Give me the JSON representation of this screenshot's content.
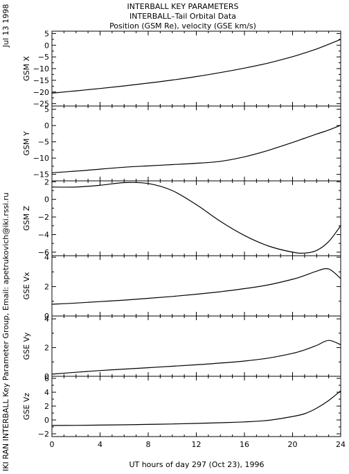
{
  "header": {
    "title1": "INTERBALL KEY PARAMETERS",
    "title2": "INTERBALL–Tail Orbital Data",
    "title3": "Position (GSM Re), velocity (GSE km/s)"
  },
  "side": {
    "date": "Jul 13 1998",
    "credit": "IKI RAN INTERBALL Key Parameter Group, Email: apetrukovich@iki.rssi.ru"
  },
  "chart_data": {
    "type": "line",
    "xlabel": "UT hours of day 297 (Oct 23), 1996",
    "xlim": [
      0,
      24
    ],
    "x_ticks": [
      0,
      4,
      8,
      12,
      16,
      20,
      24
    ],
    "x": [
      0,
      2,
      4,
      6,
      8,
      10,
      12,
      14,
      16,
      18,
      20,
      21,
      22,
      23,
      24
    ],
    "panels": [
      {
        "name": "GSM X",
        "ylim": [
          -26,
          6
        ],
        "y_ticks": [
          5,
          0,
          -5,
          -10,
          -15,
          -20,
          -25
        ],
        "values": [
          -20.5,
          -19.5,
          -18.5,
          -17.4,
          -16.2,
          -14.9,
          -13.4,
          -11.7,
          -9.8,
          -7.6,
          -4.9,
          -3.3,
          -1.6,
          0.4,
          2.5
        ]
      },
      {
        "name": "GSM Y",
        "ylim": [
          -17,
          6
        ],
        "y_ticks": [
          5,
          0,
          -5,
          -10,
          -15
        ],
        "values": [
          -14.5,
          -14.0,
          -13.4,
          -12.8,
          -12.4,
          -12.0,
          -11.6,
          -11.0,
          -9.6,
          -7.6,
          -5.2,
          -3.9,
          -2.6,
          -1.4,
          0.1
        ]
      },
      {
        "name": "GSM Z",
        "ylim": [
          -6.4,
          2.1
        ],
        "y_ticks": [
          2,
          0,
          -2,
          -4,
          -6
        ],
        "values": [
          1.4,
          1.4,
          1.6,
          1.9,
          1.8,
          1.0,
          -0.6,
          -2.5,
          -4.1,
          -5.3,
          -6.0,
          -6.1,
          -5.8,
          -4.8,
          -3.0
        ]
      },
      {
        "name": "GSE Vx",
        "ylim": [
          0,
          4.1
        ],
        "y_ticks": [
          4,
          2,
          0
        ],
        "values": [
          0.8,
          0.88,
          0.98,
          1.08,
          1.2,
          1.33,
          1.48,
          1.65,
          1.86,
          2.12,
          2.5,
          2.75,
          3.05,
          3.2,
          2.55
        ]
      },
      {
        "name": "GSE Vy",
        "ylim": [
          0,
          4.2
        ],
        "y_ticks": [
          4,
          2,
          0
        ],
        "values": [
          0.15,
          0.28,
          0.4,
          0.5,
          0.6,
          0.7,
          0.8,
          0.92,
          1.06,
          1.27,
          1.6,
          1.84,
          2.15,
          2.5,
          2.2
        ]
      },
      {
        "name": "GSE Vz",
        "ylim": [
          -2.4,
          6.3
        ],
        "y_ticks": [
          6,
          4,
          2,
          0,
          -2
        ],
        "values": [
          -0.8,
          -0.78,
          -0.74,
          -0.7,
          -0.64,
          -0.58,
          -0.5,
          -0.4,
          -0.28,
          -0.05,
          0.5,
          0.9,
          1.7,
          2.8,
          4.2
        ]
      }
    ]
  }
}
